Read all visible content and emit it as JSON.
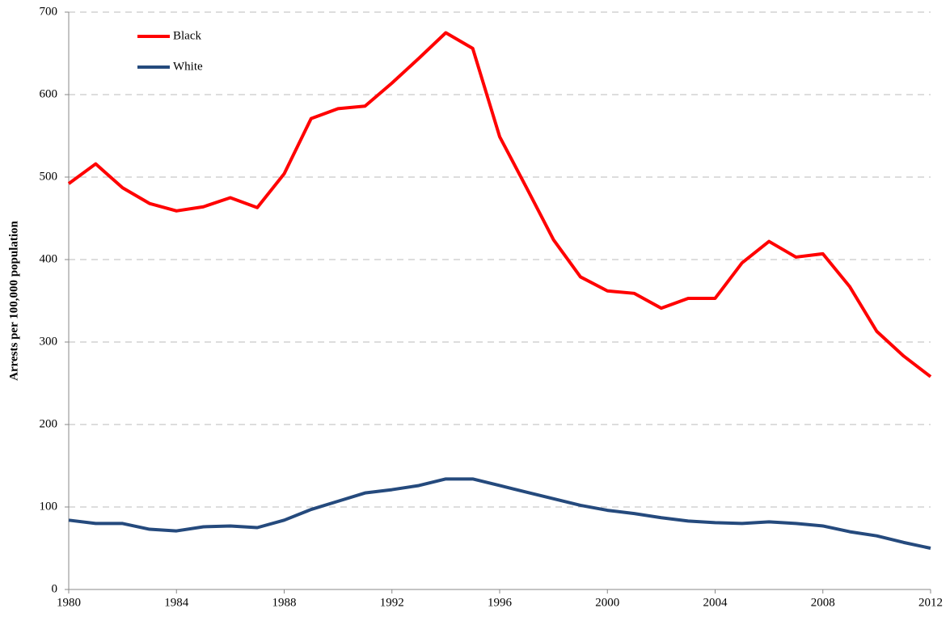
{
  "chart_data": {
    "type": "line",
    "y_label": "Arrests per 100,000 population",
    "x": [
      1980,
      1981,
      1982,
      1983,
      1984,
      1985,
      1986,
      1987,
      1988,
      1989,
      1990,
      1991,
      1992,
      1993,
      1994,
      1995,
      1996,
      1997,
      1998,
      1999,
      2000,
      2001,
      2002,
      2003,
      2004,
      2005,
      2006,
      2007,
      2008,
      2009,
      2010,
      2011,
      2012
    ],
    "series": [
      {
        "name": "Black",
        "color": "#ff0000",
        "values": [
          492,
          516,
          487,
          468,
          459,
          464,
          475,
          463,
          504,
          571,
          583,
          586,
          614,
          644,
          675,
          656,
          549,
          487,
          424,
          379,
          362,
          359,
          341,
          353,
          353,
          396,
          422,
          403,
          407,
          367,
          313,
          283,
          258
        ]
      },
      {
        "name": "White",
        "color": "#254a7d",
        "values": [
          84,
          80,
          80,
          73,
          71,
          76,
          77,
          75,
          84,
          97,
          107,
          117,
          121,
          126,
          134,
          134,
          126,
          118,
          110,
          102,
          96,
          92,
          87,
          83,
          81,
          80,
          82,
          80,
          77,
          70,
          65,
          57,
          50
        ]
      }
    ],
    "xlim": [
      1980,
      2012
    ],
    "xticks": [
      1980,
      1984,
      1988,
      1992,
      1996,
      2000,
      2004,
      2008,
      2012
    ],
    "ylim": [
      0,
      700
    ],
    "yticks": [
      0,
      100,
      200,
      300,
      400,
      500,
      600,
      700
    ],
    "grid": true,
    "legend": "upper left"
  }
}
